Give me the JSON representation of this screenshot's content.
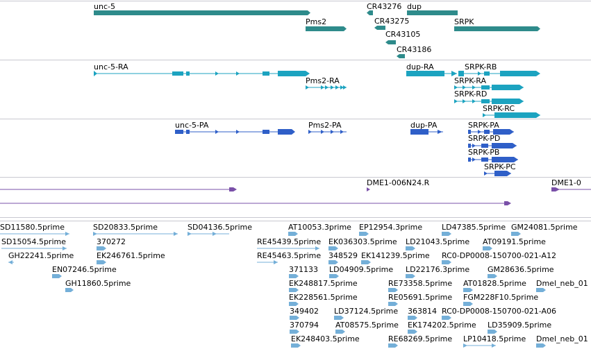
{
  "colors": {
    "gene": "#2e8b8b",
    "transcript": "#1ca3c0",
    "protein": "#2f5fc8",
    "alignment": "#7a50a8",
    "est": "#74afd8",
    "divider": "#c8c8d0",
    "label": "#000000"
  },
  "genes": [
    {
      "name": "unc-5",
      "label": "unc-5"
    },
    {
      "name": "cr43276",
      "label": "CR43276"
    },
    {
      "name": "dup",
      "label": "dup"
    },
    {
      "name": "pms2",
      "label": "Pms2"
    },
    {
      "name": "cr43275",
      "label": "CR43275"
    },
    {
      "name": "srpk",
      "label": "SRPK"
    },
    {
      "name": "cr43105",
      "label": "CR43105"
    },
    {
      "name": "cr43186",
      "label": "CR43186"
    }
  ],
  "transcripts": [
    {
      "name": "unc-5-ra",
      "label": "unc-5-RA"
    },
    {
      "name": "dup-ra",
      "label": "dup-RA"
    },
    {
      "name": "srpk-rb",
      "label": "SRPK-RB"
    },
    {
      "name": "pms2-ra",
      "label": "Pms2-RA"
    },
    {
      "name": "srpk-ra",
      "label": "SRPK-RA"
    },
    {
      "name": "srpk-rd",
      "label": "SRPK-RD"
    },
    {
      "name": "srpk-rc",
      "label": "SRPK-RC"
    }
  ],
  "proteins": [
    {
      "name": "unc-5-pa",
      "label": "unc-5-PA"
    },
    {
      "name": "pms2-pa",
      "label": "Pms2-PA"
    },
    {
      "name": "dup-pa",
      "label": "dup-PA"
    },
    {
      "name": "srpk-pa",
      "label": "SRPK-PA"
    },
    {
      "name": "srpk-pd",
      "label": "SRPK-PD"
    },
    {
      "name": "srpk-pb",
      "label": "SRPK-PB"
    },
    {
      "name": "srpk-pc",
      "label": "SRPK-PC"
    }
  ],
  "alignments": [
    {
      "name": "dme1-006n24r",
      "label": "DME1-006N24.R"
    },
    {
      "name": "dme1-partial",
      "label": "DME1-0"
    }
  ],
  "ests": [
    {
      "name": "sd11580",
      "label": "SD11580.5prime"
    },
    {
      "name": "sd20833",
      "label": "SD20833.5prime"
    },
    {
      "name": "sd04136",
      "label": "SD04136.5prime"
    },
    {
      "name": "at10053",
      "label": "AT10053.3prime"
    },
    {
      "name": "ep12954",
      "label": "EP12954.3prime"
    },
    {
      "name": "ld47385",
      "label": "LD47385.5prime"
    },
    {
      "name": "gm24081",
      "label": "GM24081.5prime"
    },
    {
      "name": "sd15054",
      "label": "SD15054.5prime"
    },
    {
      "name": "r370272",
      "label": "370272"
    },
    {
      "name": "re45439",
      "label": "RE45439.5prime"
    },
    {
      "name": "ek036303",
      "label": "EK036303.5prime"
    },
    {
      "name": "ld21043",
      "label": "LD21043.5prime"
    },
    {
      "name": "at09191",
      "label": "AT09191.5prime"
    },
    {
      "name": "gh22241",
      "label": "GH22241.5prime"
    },
    {
      "name": "ek246761",
      "label": "EK246761.5prime"
    },
    {
      "name": "re45463",
      "label": "RE45463.5prime"
    },
    {
      "name": "r348529",
      "label": "348529"
    },
    {
      "name": "ek141239",
      "label": "EK141239.5prime"
    },
    {
      "name": "rc0-a12",
      "label": "RC0-DP0008-150700-021-A12"
    },
    {
      "name": "en07246",
      "label": "EN07246.5prime"
    },
    {
      "name": "r371133",
      "label": "371133"
    },
    {
      "name": "ld04909",
      "label": "LD04909.5prime"
    },
    {
      "name": "ld22176",
      "label": "LD22176.3prime"
    },
    {
      "name": "gm28636",
      "label": "GM28636.5prime"
    },
    {
      "name": "gh11860",
      "label": "GH11860.5prime"
    },
    {
      "name": "ek248817",
      "label": "EK248817.5prime"
    },
    {
      "name": "re73358",
      "label": "RE73358.5prime"
    },
    {
      "name": "at01828",
      "label": "AT01828.5prime"
    },
    {
      "name": "dmel-neb-1",
      "label": "Dmel_neb_01"
    },
    {
      "name": "ek228561",
      "label": "EK228561.5prime"
    },
    {
      "name": "re05691",
      "label": "RE05691.5prime"
    },
    {
      "name": "fgm228f10",
      "label": "FGM228F10.5prime"
    },
    {
      "name": "r349402",
      "label": "349402"
    },
    {
      "name": "ld37124",
      "label": "LD37124.5prime"
    },
    {
      "name": "r363814",
      "label": "363814"
    },
    {
      "name": "rc0-a06",
      "label": "RC0-DP0008-150700-021-A06"
    },
    {
      "name": "r370794",
      "label": "370794"
    },
    {
      "name": "at08575",
      "label": "AT08575.5prime"
    },
    {
      "name": "ek174202",
      "label": "EK174202.5prime"
    },
    {
      "name": "ld35909",
      "label": "LD35909.5prime"
    },
    {
      "name": "ek248403",
      "label": "EK248403.5prime"
    },
    {
      "name": "re68269",
      "label": "RE68269.5prime"
    },
    {
      "name": "lp10418",
      "label": "LP10418.5prime"
    },
    {
      "name": "dmel-neb-2",
      "label": "Dmel_neb_01"
    }
  ]
}
